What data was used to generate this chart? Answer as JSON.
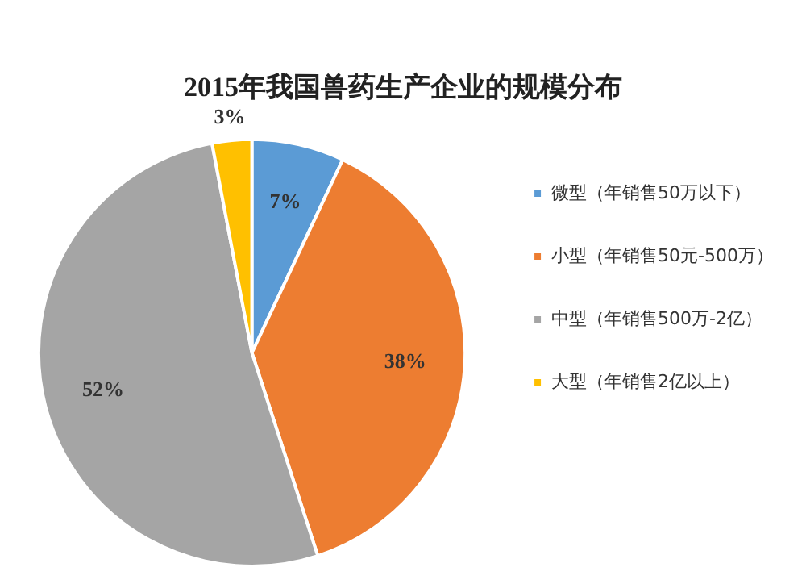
{
  "chart_data": {
    "type": "pie",
    "title": "2015年我国兽药生产企业的规模分布",
    "categories": [
      "微型（年销售50万以下）",
      "小型（年销售50元-500万）",
      "中型（年销售500万-2亿）",
      "大型（年销售2亿以上）"
    ],
    "values": [
      7,
      38,
      52,
      3
    ],
    "colors": [
      "#5b9bd5",
      "#ed7d31",
      "#a5a5a5",
      "#ffc000"
    ],
    "value_labels": [
      "7%",
      "38%",
      "52%",
      "3%"
    ],
    "legend": "right"
  }
}
